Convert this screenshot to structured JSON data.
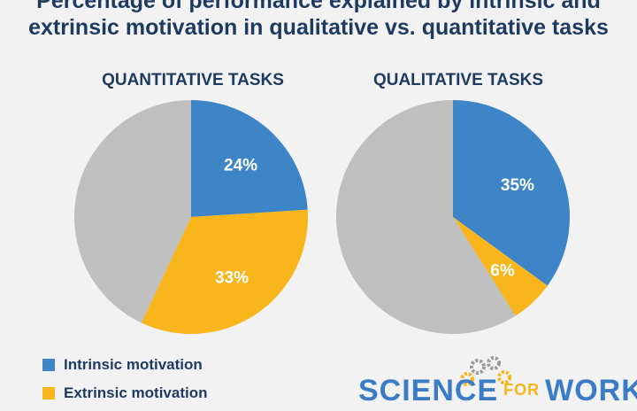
{
  "title": "Percentage of performance explained by intrinsic and extrinsic motivation in qualitative vs. quantitative tasks",
  "colors": {
    "intrinsic": "#3d85c6",
    "extrinsic": "#f8b51c",
    "unexplained": "#bfbfbf"
  },
  "chart_data": [
    {
      "type": "pie",
      "title": "QUANTITATIVE TASKS",
      "slices": [
        {
          "label": "Intrinsic motivation",
          "value": 24,
          "display": "24%"
        },
        {
          "label": "Extrinsic motivation",
          "value": 33,
          "display": "33%"
        },
        {
          "label": "",
          "value": 43,
          "display": ""
        }
      ]
    },
    {
      "type": "pie",
      "title": "QUALITATIVE TASKS",
      "slices": [
        {
          "label": "Intrinsic motivation",
          "value": 35,
          "display": "35%"
        },
        {
          "label": "Extrinsic motivation",
          "value": 6,
          "display": "6%"
        },
        {
          "label": "",
          "value": 59,
          "display": ""
        }
      ]
    }
  ],
  "legend": [
    {
      "label": "Intrinsic motivation",
      "color": "#3d85c6"
    },
    {
      "label": "Extrinsic motivation",
      "color": "#f8b51c"
    }
  ],
  "logo": {
    "left": "SCIENCE",
    "mid": "FOR",
    "right": "WORK"
  }
}
